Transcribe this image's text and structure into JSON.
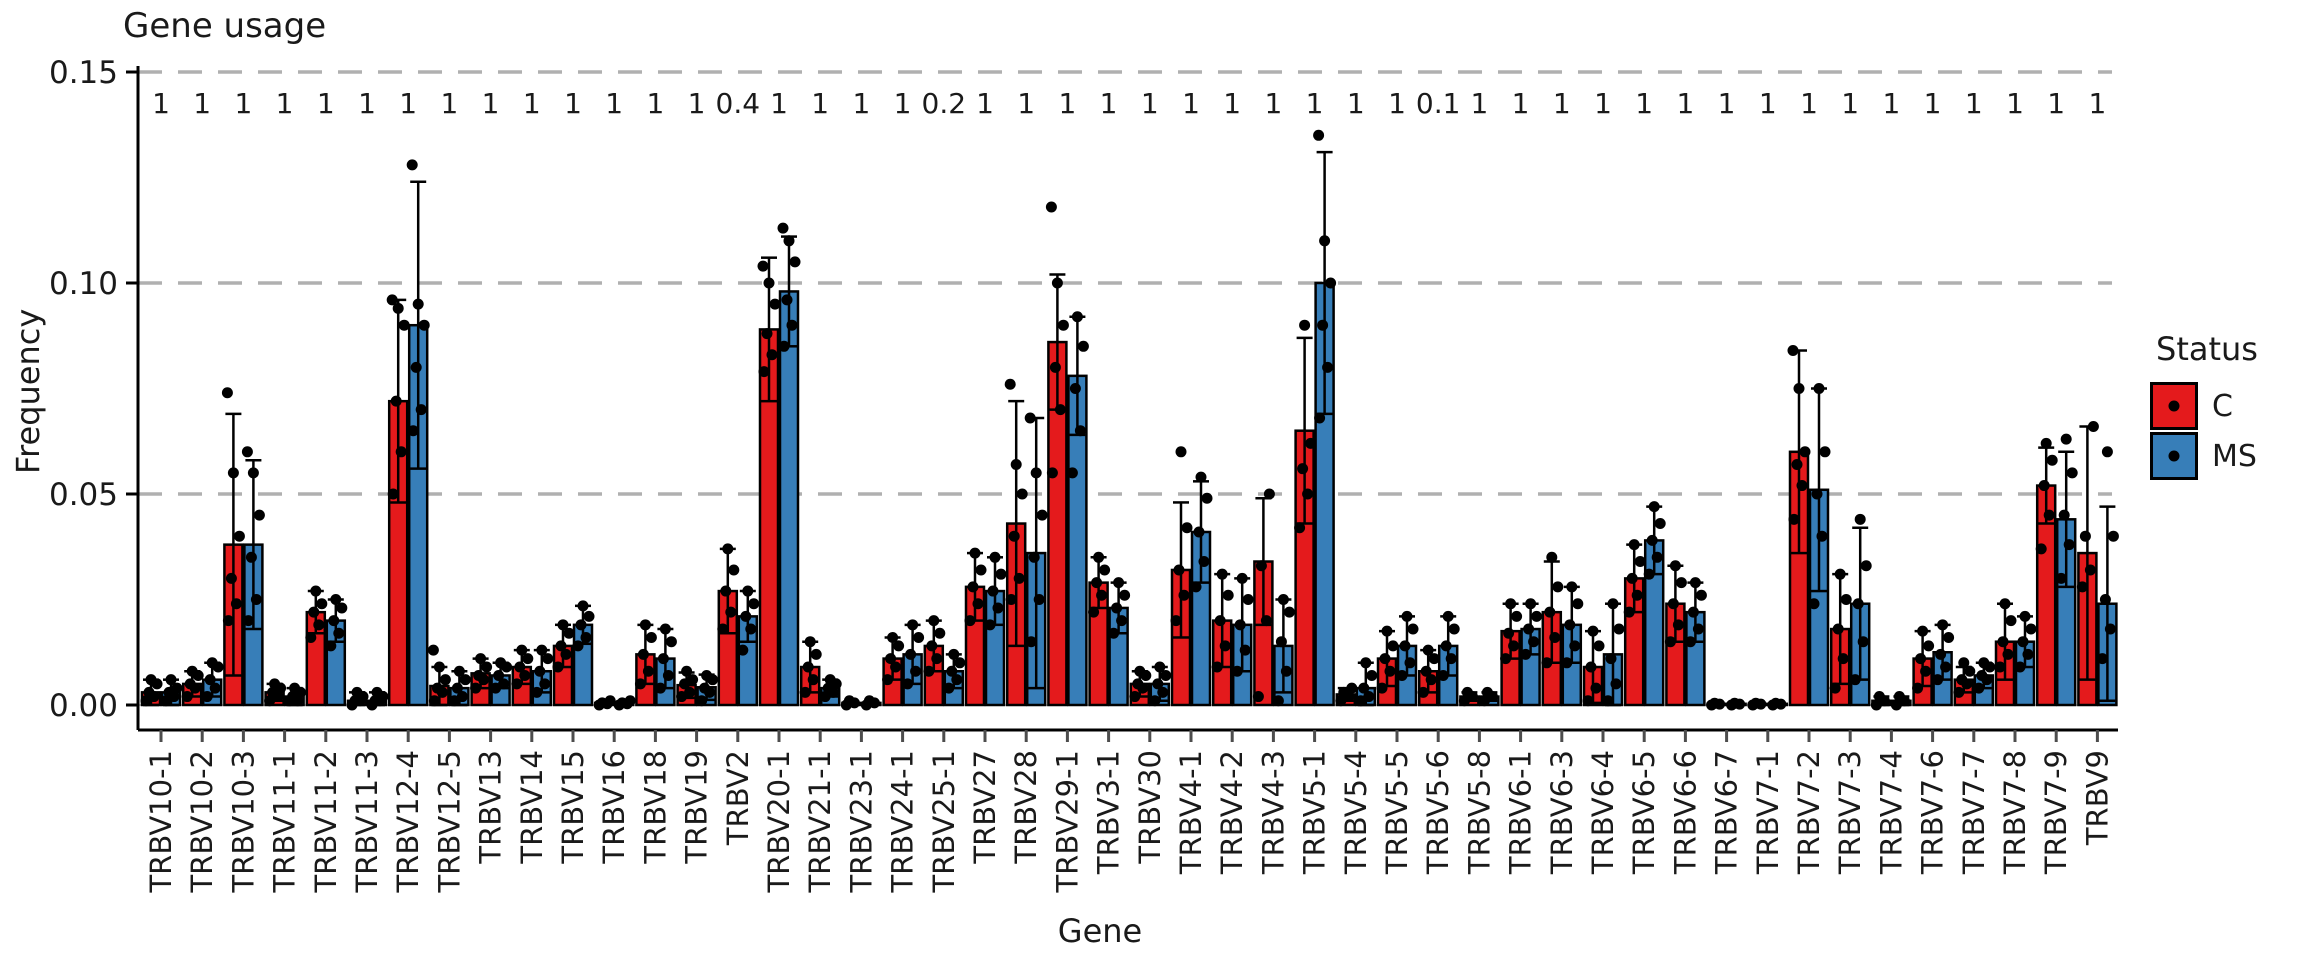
{
  "title": "Gene usage",
  "axes": {
    "y_label": "Frequency",
    "x_label": "Gene"
  },
  "legend": {
    "title": "Status",
    "items": [
      {
        "label": "C",
        "color": "#e41a1c"
      },
      {
        "label": "MS",
        "color": "#377eb8"
      }
    ]
  },
  "colors": {
    "c": "#e41a1c",
    "ms": "#377eb8",
    "grid": "#b0b0b0",
    "baseline": "#c8c8c8",
    "axis": "#000000",
    "text": "#1a1a1a"
  },
  "chart_data": {
    "type": "bar",
    "title": "Gene usage",
    "xlabel": "Gene",
    "ylabel": "Frequency",
    "ylim": [
      0,
      0.15
    ],
    "gridlines": [
      0.05,
      0.1,
      0.15
    ],
    "grid_style": "dashed",
    "legend_position": "right",
    "y_ticks": [
      {
        "v": 0.0,
        "label": "0.00"
      },
      {
        "v": 0.05,
        "label": "0.05"
      },
      {
        "v": 0.1,
        "label": "0.10"
      },
      {
        "v": 0.15,
        "label": "0.15"
      }
    ],
    "categories": [
      "TRBV10-1",
      "TRBV10-2",
      "TRBV10-3",
      "TRBV11-1",
      "TRBV11-2",
      "TRBV11-3",
      "TRBV12-4",
      "TRBV12-5",
      "TRBV13",
      "TRBV14",
      "TRBV15",
      "TRBV16",
      "TRBV18",
      "TRBV19",
      "TRBV2",
      "TRBV20-1",
      "TRBV21-1",
      "TRBV23-1",
      "TRBV24-1",
      "TRBV25-1",
      "TRBV27",
      "TRBV28",
      "TRBV29-1",
      "TRBV3-1",
      "TRBV30",
      "TRBV4-1",
      "TRBV4-2",
      "TRBV4-3",
      "TRBV5-1",
      "TRBV5-4",
      "TRBV5-5",
      "TRBV5-6",
      "TRBV5-8",
      "TRBV6-1",
      "TRBV6-3",
      "TRBV6-4",
      "TRBV6-5",
      "TRBV6-6",
      "TRBV6-7",
      "TRBV7-1",
      "TRBV7-2",
      "TRBV7-3",
      "TRBV7-4",
      "TRBV7-6",
      "TRBV7-7",
      "TRBV7-8",
      "TRBV7-9",
      "TRBV9"
    ],
    "p_values": [
      "1",
      "1",
      "1",
      "1",
      "1",
      "1",
      "1",
      "1",
      "1",
      "1",
      "1",
      "1",
      "1",
      "1",
      "0.4",
      "1",
      "1",
      "1",
      "1",
      "0.2",
      "1",
      "1",
      "1",
      "1",
      "1",
      "1",
      "1",
      "1",
      "1",
      "1",
      "1",
      "0.1",
      "1",
      "1",
      "1",
      "1",
      "1",
      "1",
      "1",
      "1",
      "1",
      "1",
      "1",
      "1",
      "1",
      "1",
      "1",
      "1"
    ],
    "series": [
      {
        "name": "C",
        "color": "#e41a1c",
        "means": [
          0.003,
          0.005,
          0.038,
          0.003,
          0.022,
          0.001,
          0.072,
          0.0045,
          0.0075,
          0.009,
          0.014,
          0.0005,
          0.012,
          0.0047,
          0.027,
          0.089,
          0.009,
          0.0005,
          0.011,
          0.014,
          0.028,
          0.043,
          0.086,
          0.029,
          0.005,
          0.032,
          0.02,
          0.034,
          0.065,
          0.0025,
          0.011,
          0.008,
          0.002,
          0.0175,
          0.022,
          0.009,
          0.03,
          0.024,
          0.0002,
          0.0002,
          0.06,
          0.018,
          0.001,
          0.011,
          0.006,
          0.015,
          0.052,
          0.036
        ],
        "sd": [
          0.003,
          0.003,
          0.031,
          0.002,
          0.005,
          0.002,
          0.024,
          0.0045,
          0.0035,
          0.004,
          0.005,
          0.0005,
          0.007,
          0.003,
          0.01,
          0.017,
          0.006,
          0.0005,
          0.005,
          0.006,
          0.008,
          0.029,
          0.016,
          0.006,
          0.003,
          0.016,
          0.011,
          0.015,
          0.022,
          0.0015,
          0.0065,
          0.005,
          0.001,
          0.0065,
          0.012,
          0.0085,
          0.008,
          0.009,
          0.0002,
          0.0002,
          0.024,
          0.013,
          0.001,
          0.0065,
          0.003,
          0.009,
          0.009,
          0.03
        ],
        "points": [
          [
            0.001,
            0.002,
            0.003,
            0.005,
            0.006
          ],
          [
            0.002,
            0.004,
            0.005,
            0.007,
            0.008
          ],
          [
            0.02,
            0.024,
            0.03,
            0.04,
            0.055,
            0.074
          ],
          [
            0.001,
            0.002,
            0.003,
            0.004,
            0.005
          ],
          [
            0.016,
            0.019,
            0.022,
            0.024,
            0.027
          ],
          [
            0.0,
            0.001,
            0.001,
            0.002,
            0.003
          ],
          [
            0.05,
            0.06,
            0.072,
            0.09,
            0.094,
            0.096
          ],
          [
            0.001,
            0.003,
            0.004,
            0.006,
            0.009,
            0.013
          ],
          [
            0.004,
            0.006,
            0.007,
            0.009,
            0.011
          ],
          [
            0.005,
            0.007,
            0.009,
            0.011,
            0.013
          ],
          [
            0.009,
            0.012,
            0.014,
            0.017,
            0.019
          ],
          [
            0.0,
            0.0003,
            0.0005,
            0.001
          ],
          [
            0.005,
            0.008,
            0.012,
            0.016,
            0.019
          ],
          [
            0.002,
            0.003,
            0.005,
            0.006,
            0.008
          ],
          [
            0.018,
            0.022,
            0.027,
            0.032,
            0.037
          ],
          [
            0.079,
            0.083,
            0.088,
            0.095,
            0.1,
            0.104
          ],
          [
            0.003,
            0.006,
            0.009,
            0.012,
            0.015
          ],
          [
            0.0,
            0.0005,
            0.001
          ],
          [
            0.006,
            0.009,
            0.011,
            0.014,
            0.016
          ],
          [
            0.008,
            0.011,
            0.014,
            0.017,
            0.02
          ],
          [
            0.02,
            0.024,
            0.028,
            0.032,
            0.036
          ],
          [
            0.025,
            0.03,
            0.04,
            0.05,
            0.057,
            0.076
          ],
          [
            0.055,
            0.07,
            0.08,
            0.09,
            0.1,
            0.118
          ],
          [
            0.022,
            0.026,
            0.029,
            0.032,
            0.035
          ],
          [
            0.002,
            0.004,
            0.005,
            0.007,
            0.008
          ],
          [
            0.02,
            0.026,
            0.032,
            0.042,
            0.06
          ],
          [
            0.009,
            0.014,
            0.02,
            0.026,
            0.031
          ],
          [
            0.002,
            0.02,
            0.033,
            0.05
          ],
          [
            0.042,
            0.05,
            0.056,
            0.062,
            0.09
          ],
          [
            0.001,
            0.002,
            0.003,
            0.004
          ],
          [
            0.004,
            0.008,
            0.011,
            0.014,
            0.0175
          ],
          [
            0.003,
            0.006,
            0.008,
            0.011,
            0.013
          ],
          [
            0.001,
            0.002,
            0.003
          ],
          [
            0.011,
            0.014,
            0.017,
            0.021,
            0.024
          ],
          [
            0.01,
            0.016,
            0.022,
            0.028,
            0.035
          ],
          [
            0.001,
            0.004,
            0.009,
            0.014,
            0.0175
          ],
          [
            0.022,
            0.026,
            0.03,
            0.034,
            0.038
          ],
          [
            0.015,
            0.019,
            0.024,
            0.029,
            0.033
          ],
          [
            0.0,
            0.0002,
            0.0004
          ],
          [
            0.0,
            0.0002,
            0.0004
          ],
          [
            0.044,
            0.052,
            0.057,
            0.06,
            0.075,
            0.084
          ],
          [
            0.004,
            0.011,
            0.018,
            0.025,
            0.031
          ],
          [
            0.0,
            0.001,
            0.002
          ],
          [
            0.004,
            0.008,
            0.011,
            0.014,
            0.0175
          ],
          [
            0.003,
            0.005,
            0.006,
            0.008,
            0.01
          ],
          [
            0.009,
            0.012,
            0.015,
            0.02,
            0.024
          ],
          [
            0.037,
            0.045,
            0.052,
            0.058,
            0.062
          ],
          [
            0.028,
            0.032,
            0.04,
            0.066
          ]
        ]
      },
      {
        "name": "MS",
        "color": "#377eb8",
        "means": [
          0.003,
          0.006,
          0.038,
          0.002,
          0.02,
          0.001,
          0.09,
          0.004,
          0.007,
          0.008,
          0.019,
          0.0005,
          0.011,
          0.0042,
          0.021,
          0.098,
          0.004,
          0.0005,
          0.012,
          0.008,
          0.027,
          0.036,
          0.078,
          0.023,
          0.005,
          0.041,
          0.019,
          0.014,
          0.1,
          0.004,
          0.014,
          0.014,
          0.002,
          0.018,
          0.019,
          0.012,
          0.039,
          0.022,
          0.0002,
          0.0002,
          0.051,
          0.024,
          0.001,
          0.0125,
          0.007,
          0.015,
          0.044,
          0.024
        ],
        "sd": [
          0.003,
          0.004,
          0.02,
          0.002,
          0.005,
          0.002,
          0.034,
          0.004,
          0.003,
          0.005,
          0.0045,
          0.0005,
          0.007,
          0.003,
          0.006,
          0.013,
          0.002,
          0.0005,
          0.007,
          0.004,
          0.008,
          0.032,
          0.014,
          0.006,
          0.004,
          0.012,
          0.011,
          0.011,
          0.031,
          0.006,
          0.007,
          0.007,
          0.001,
          0.006,
          0.009,
          0.012,
          0.008,
          0.007,
          0.0002,
          0.0002,
          0.024,
          0.018,
          0.001,
          0.0065,
          0.003,
          0.006,
          0.016,
          0.023
        ],
        "points": [
          [
            0.001,
            0.002,
            0.003,
            0.004,
            0.006
          ],
          [
            0.002,
            0.004,
            0.006,
            0.009,
            0.01
          ],
          [
            0.02,
            0.025,
            0.035,
            0.045,
            0.055,
            0.06
          ],
          [
            0.001,
            0.001,
            0.002,
            0.003,
            0.004
          ],
          [
            0.014,
            0.017,
            0.02,
            0.023,
            0.025
          ],
          [
            0.0,
            0.001,
            0.001,
            0.002,
            0.003
          ],
          [
            0.065,
            0.07,
            0.08,
            0.09,
            0.095,
            0.128
          ],
          [
            0.001,
            0.002,
            0.004,
            0.006,
            0.008
          ],
          [
            0.004,
            0.005,
            0.007,
            0.009,
            0.01
          ],
          [
            0.003,
            0.005,
            0.008,
            0.011,
            0.013
          ],
          [
            0.014,
            0.016,
            0.019,
            0.021,
            0.0235
          ],
          [
            0.0,
            0.0003,
            0.0005,
            0.001
          ],
          [
            0.004,
            0.007,
            0.011,
            0.015,
            0.018
          ],
          [
            0.001,
            0.003,
            0.004,
            0.006,
            0.007
          ],
          [
            0.013,
            0.018,
            0.021,
            0.024,
            0.027
          ],
          [
            0.085,
            0.09,
            0.096,
            0.105,
            0.11,
            0.113
          ],
          [
            0.002,
            0.003,
            0.004,
            0.005,
            0.006
          ],
          [
            0.0,
            0.0005,
            0.001
          ],
          [
            0.005,
            0.008,
            0.012,
            0.016,
            0.019
          ],
          [
            0.004,
            0.006,
            0.008,
            0.01,
            0.012
          ],
          [
            0.019,
            0.023,
            0.027,
            0.031,
            0.035
          ],
          [
            0.015,
            0.025,
            0.035,
            0.045,
            0.055,
            0.068
          ],
          [
            0.055,
            0.065,
            0.075,
            0.085,
            0.092
          ],
          [
            0.017,
            0.02,
            0.023,
            0.026,
            0.029
          ],
          [
            0.001,
            0.003,
            0.005,
            0.007,
            0.009
          ],
          [
            0.028,
            0.034,
            0.041,
            0.049,
            0.054
          ],
          [
            0.008,
            0.013,
            0.019,
            0.025,
            0.03
          ],
          [
            0.001,
            0.008,
            0.015,
            0.022,
            0.025
          ],
          [
            0.068,
            0.08,
            0.09,
            0.1,
            0.11,
            0.135
          ],
          [
            0.001,
            0.002,
            0.004,
            0.007,
            0.01
          ],
          [
            0.007,
            0.01,
            0.014,
            0.018,
            0.021
          ],
          [
            0.007,
            0.011,
            0.014,
            0.018,
            0.021
          ],
          [
            0.001,
            0.002,
            0.003
          ],
          [
            0.012,
            0.015,
            0.018,
            0.021,
            0.024
          ],
          [
            0.01,
            0.014,
            0.019,
            0.024,
            0.028
          ],
          [
            0.001,
            0.005,
            0.011,
            0.018,
            0.024
          ],
          [
            0.031,
            0.035,
            0.039,
            0.043,
            0.047
          ],
          [
            0.015,
            0.018,
            0.022,
            0.026,
            0.029
          ],
          [
            0.0,
            0.0002,
            0.0004
          ],
          [
            0.0,
            0.0002,
            0.0004
          ],
          [
            0.024,
            0.04,
            0.05,
            0.06,
            0.075
          ],
          [
            0.006,
            0.015,
            0.024,
            0.033,
            0.044
          ],
          [
            0.0,
            0.001,
            0.002
          ],
          [
            0.006,
            0.009,
            0.012,
            0.016,
            0.019
          ],
          [
            0.004,
            0.006,
            0.007,
            0.009,
            0.01
          ],
          [
            0.009,
            0.012,
            0.015,
            0.018,
            0.021
          ],
          [
            0.03,
            0.038,
            0.045,
            0.055,
            0.063
          ],
          [
            0.011,
            0.018,
            0.025,
            0.04,
            0.06
          ]
        ]
      }
    ]
  }
}
